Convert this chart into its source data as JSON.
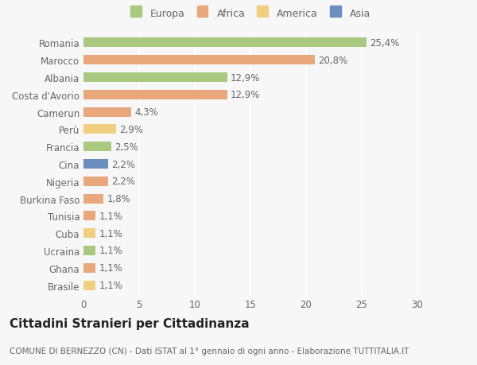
{
  "countries": [
    "Romania",
    "Marocco",
    "Albania",
    "Costa d'Avorio",
    "Camerun",
    "Perù",
    "Francia",
    "Cina",
    "Nigeria",
    "Burkina Faso",
    "Tunisia",
    "Cuba",
    "Ucraina",
    "Ghana",
    "Brasile"
  ],
  "values": [
    25.4,
    20.8,
    12.9,
    12.9,
    4.3,
    2.9,
    2.5,
    2.2,
    2.2,
    1.8,
    1.1,
    1.1,
    1.1,
    1.1,
    1.1
  ],
  "labels": [
    "25,4%",
    "20,8%",
    "12,9%",
    "12,9%",
    "4,3%",
    "2,9%",
    "2,5%",
    "2,2%",
    "2,2%",
    "1,8%",
    "1,1%",
    "1,1%",
    "1,1%",
    "1,1%",
    "1,1%"
  ],
  "colors": [
    "#a8c97f",
    "#e8a87c",
    "#a8c97f",
    "#e8a87c",
    "#e8a87c",
    "#f0d080",
    "#a8c97f",
    "#6a8fbf",
    "#e8a87c",
    "#e8a87c",
    "#e8a87c",
    "#f0d080",
    "#a8c97f",
    "#e8a87c",
    "#f0d080"
  ],
  "legend_labels": [
    "Europa",
    "Africa",
    "America",
    "Asia"
  ],
  "legend_colors": [
    "#a8c97f",
    "#e8a87c",
    "#f0d080",
    "#6a8fbf"
  ],
  "title": "Cittadini Stranieri per Cittadinanza",
  "subtitle": "COMUNE DI BERNEZZO (CN) - Dati ISTAT al 1° gennaio di ogni anno - Elaborazione TUTTITALIA.IT",
  "xlim": [
    0,
    30
  ],
  "xticks": [
    0,
    5,
    10,
    15,
    20,
    25,
    30
  ],
  "bg_color": "#f7f7f7",
  "bar_height": 0.55,
  "label_fontsize": 8.5,
  "tick_fontsize": 8.5,
  "title_fontsize": 11,
  "subtitle_fontsize": 7.5
}
